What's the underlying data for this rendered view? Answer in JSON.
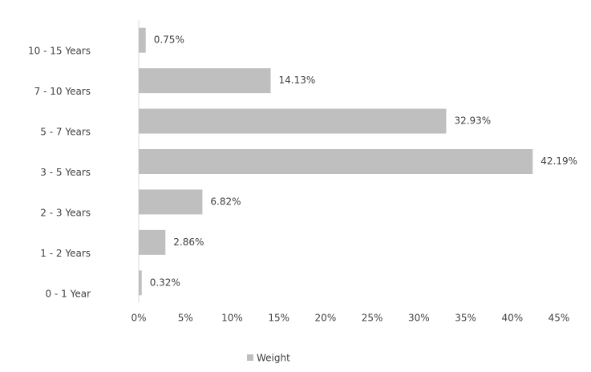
{
  "chart_data": {
    "type": "hbar",
    "categories": [
      "0 - 1 Year",
      "1 - 2 Years",
      "2 - 3 Years",
      "3 - 5 Years",
      "5 - 7 Years",
      "7 - 10 Years",
      "10 - 15 Years"
    ],
    "series": [
      {
        "name": "Weight",
        "color": "#bfbfbf",
        "values": [
          0.32,
          2.86,
          6.82,
          42.19,
          32.93,
          14.13,
          0.75
        ],
        "value_labels": [
          "0.32%",
          "2.86%",
          "6.82%",
          "42.19%",
          "32.93%",
          "14.13%",
          "0.75%"
        ]
      }
    ],
    "xlim": [
      0,
      45
    ],
    "xticks": [
      {
        "value": 0,
        "label": "0%"
      },
      {
        "value": 5,
        "label": "5%"
      },
      {
        "value": 10,
        "label": "10%"
      },
      {
        "value": 15,
        "label": "15%"
      },
      {
        "value": 20,
        "label": "20%"
      },
      {
        "value": 25,
        "label": "25%"
      },
      {
        "value": 30,
        "label": "30%"
      },
      {
        "value": 35,
        "label": "35%"
      },
      {
        "value": 40,
        "label": "40%"
      },
      {
        "value": 45,
        "label": "45%"
      }
    ],
    "legend": "bottom"
  }
}
